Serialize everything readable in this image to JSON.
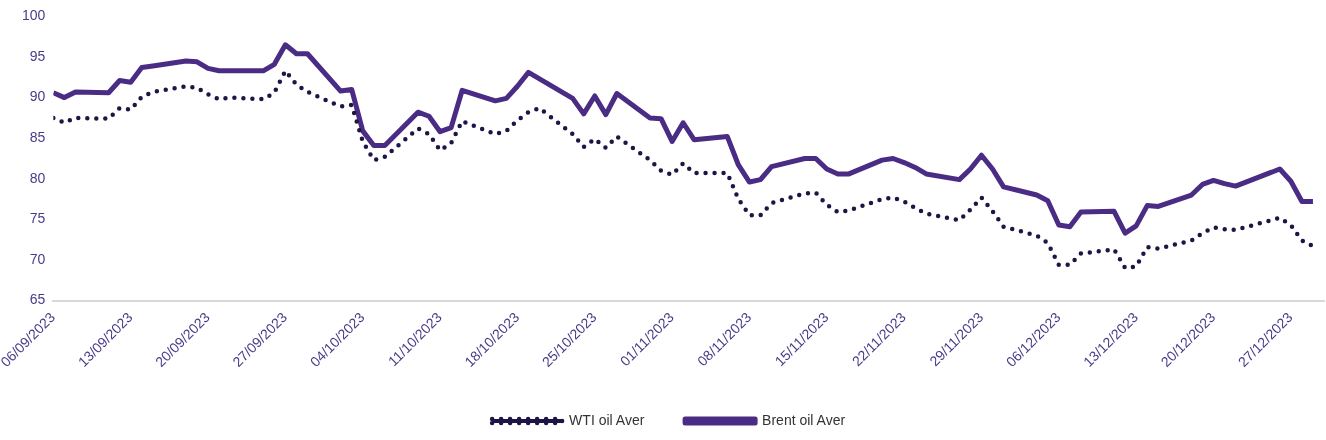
{
  "chart_data": {
    "type": "line",
    "x": [
      "2023-09-06",
      "2023-09-07",
      "2023-09-08",
      "2023-09-11",
      "2023-09-12",
      "2023-09-13",
      "2023-09-14",
      "2023-09-15",
      "2023-09-18",
      "2023-09-19",
      "2023-09-20",
      "2023-09-21",
      "2023-09-22",
      "2023-09-25",
      "2023-09-26",
      "2023-09-27",
      "2023-09-28",
      "2023-09-29",
      "2023-10-02",
      "2023-10-03",
      "2023-10-04",
      "2023-10-05",
      "2023-10-06",
      "2023-10-09",
      "2023-10-10",
      "2023-10-11",
      "2023-10-12",
      "2023-10-13",
      "2023-10-16",
      "2023-10-17",
      "2023-10-18",
      "2023-10-19",
      "2023-10-20",
      "2023-10-23",
      "2023-10-24",
      "2023-10-25",
      "2023-10-26",
      "2023-10-27",
      "2023-10-30",
      "2023-10-31",
      "2023-11-01",
      "2023-11-02",
      "2023-11-03",
      "2023-11-06",
      "2023-11-07",
      "2023-11-08",
      "2023-11-09",
      "2023-11-10",
      "2023-11-13",
      "2023-11-14",
      "2023-11-15",
      "2023-11-16",
      "2023-11-17",
      "2023-11-20",
      "2023-11-21",
      "2023-11-22",
      "2023-11-23",
      "2023-11-24",
      "2023-11-27",
      "2023-11-28",
      "2023-11-29",
      "2023-11-30",
      "2023-12-01",
      "2023-12-04",
      "2023-12-05",
      "2023-12-06",
      "2023-12-07",
      "2023-12-08",
      "2023-12-11",
      "2023-12-12",
      "2023-12-13",
      "2023-12-14",
      "2023-12-15",
      "2023-12-18",
      "2023-12-19",
      "2023-12-20",
      "2023-12-21",
      "2023-12-22",
      "2023-12-26",
      "2023-12-27",
      "2023-12-28",
      "2023-12-29"
    ],
    "series": [
      {
        "name": "WTI oil Aver",
        "color": "#1e1446",
        "line_style": "dotted",
        "values": [
          87.5,
          86.9,
          87.5,
          87.4,
          88.7,
          88.5,
          90.1,
          90.7,
          91.4,
          91.2,
          90.4,
          89.8,
          90.0,
          89.8,
          90.6,
          93.3,
          91.6,
          90.7,
          88.9,
          89.1,
          84.6,
          82.3,
          82.7,
          86.2,
          85.5,
          83.5,
          84.4,
          87.1,
          85.5,
          85.9,
          87.2,
          88.2,
          88.7,
          85.5,
          83.9,
          84.9,
          83.8,
          85.2,
          82.3,
          81.0,
          80.5,
          81.9,
          80.7,
          80.7,
          77.5,
          75.5,
          75.5,
          77.0,
          78.2,
          78.3,
          76.8,
          75.9,
          76.1,
          77.5,
          77.7,
          77.2,
          76.4,
          75.7,
          74.9,
          76.2,
          77.7,
          76.0,
          74.1,
          73.0,
          72.1,
          69.4,
          69.4,
          70.8,
          71.3,
          69.0,
          69.2,
          71.6,
          71.4,
          72.4,
          73.3,
          74.0,
          73.8,
          73.7,
          75.2,
          74.3,
          72.4,
          71.7
        ]
      },
      {
        "name": "Brent oil Aver",
        "color": "#4b2c84",
        "line_style": "solid",
        "values": [
          90.6,
          90.0,
          90.7,
          90.6,
          92.1,
          91.9,
          93.7,
          93.9,
          94.5,
          94.4,
          93.6,
          93.3,
          93.3,
          93.3,
          94.1,
          96.5,
          95.4,
          95.4,
          90.8,
          91.0,
          85.9,
          84.1,
          84.1,
          88.2,
          87.7,
          85.8,
          86.3,
          90.9,
          89.6,
          89.9,
          91.4,
          93.1,
          92.3,
          89.9,
          88.0,
          90.2,
          87.9,
          90.5,
          87.5,
          87.4,
          84.6,
          86.9,
          84.8,
          85.2,
          81.7,
          79.6,
          79.9,
          81.5,
          82.5,
          82.5,
          81.2,
          80.6,
          80.6,
          82.3,
          82.5,
          82.0,
          81.4,
          80.6,
          79.9,
          81.2,
          82.9,
          81.2,
          79.0,
          78.0,
          77.3,
          74.3,
          74.1,
          75.9,
          76.0,
          73.3,
          74.2,
          76.7,
          76.6,
          78.0,
          79.3,
          79.8,
          79.4,
          79.1,
          81.2,
          79.7,
          77.2,
          77.2
        ]
      }
    ],
    "xlim": [
      "2023-09-06",
      "2023-12-30"
    ],
    "xticks": [
      {
        "value": "2023-09-06",
        "label": "06/09/2023"
      },
      {
        "value": "2023-09-13",
        "label": "13/09/2023"
      },
      {
        "value": "2023-09-20",
        "label": "20/09/2023"
      },
      {
        "value": "2023-09-27",
        "label": "27/09/2023"
      },
      {
        "value": "2023-10-04",
        "label": "04/10/2023"
      },
      {
        "value": "2023-10-11",
        "label": "11/10/2023"
      },
      {
        "value": "2023-10-18",
        "label": "18/10/2023"
      },
      {
        "value": "2023-10-25",
        "label": "25/10/2023"
      },
      {
        "value": "2023-11-01",
        "label": "01/11/2023"
      },
      {
        "value": "2023-11-08",
        "label": "08/11/2023"
      },
      {
        "value": "2023-11-15",
        "label": "15/11/2023"
      },
      {
        "value": "2023-11-22",
        "label": "22/11/2023"
      },
      {
        "value": "2023-11-29",
        "label": "29/11/2023"
      },
      {
        "value": "2023-12-06",
        "label": "06/12/2023"
      },
      {
        "value": "2023-12-13",
        "label": "13/12/2023"
      },
      {
        "value": "2023-12-20",
        "label": "20/12/2023"
      },
      {
        "value": "2023-12-27",
        "label": "27/12/2023"
      }
    ],
    "ylim": [
      65,
      100
    ],
    "yticks": [
      65,
      70,
      75,
      80,
      85,
      90,
      95,
      100
    ],
    "grid": false,
    "legend": "bottom",
    "marker": "none"
  }
}
